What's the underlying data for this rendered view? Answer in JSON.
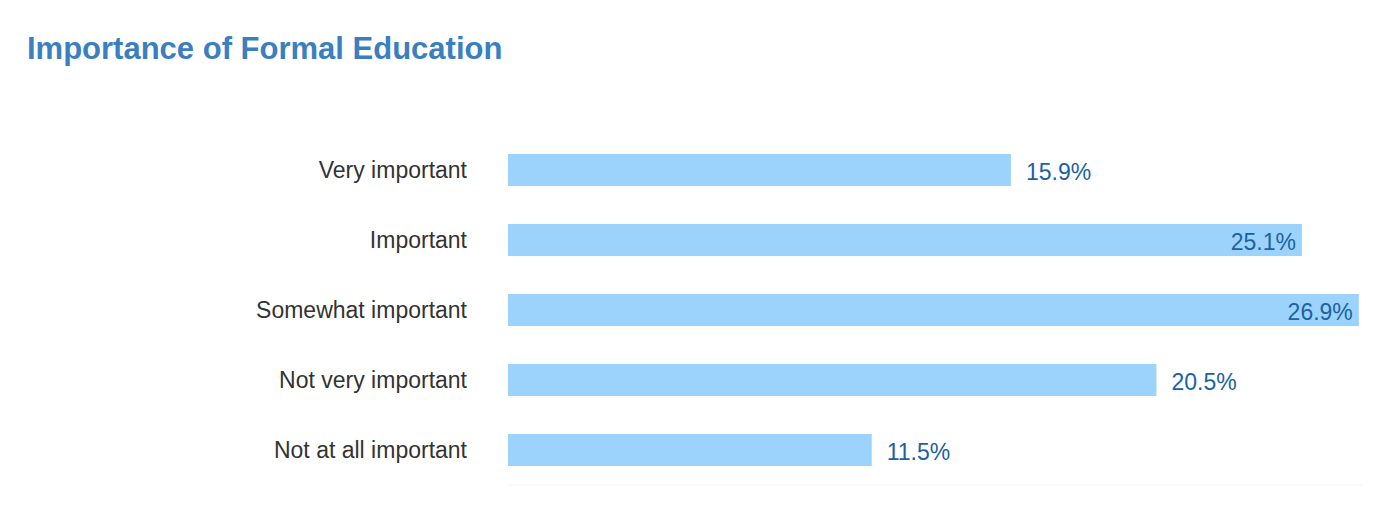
{
  "chart_data": {
    "type": "bar",
    "title": "Importance of Formal Education",
    "orientation": "horizontal",
    "categories": [
      "Very important",
      "Important",
      "Somewhat important",
      "Not very important",
      "Not at all important"
    ],
    "values": [
      15.9,
      25.1,
      26.9,
      20.5,
      11.5
    ],
    "value_labels": [
      "15.9%",
      "25.1%",
      "26.9%",
      "20.5%",
      "11.5%"
    ],
    "color": "#9cd3fc",
    "xlim": [
      0,
      27
    ],
    "data_labels": true,
    "tick_labels": false,
    "grid": false
  }
}
